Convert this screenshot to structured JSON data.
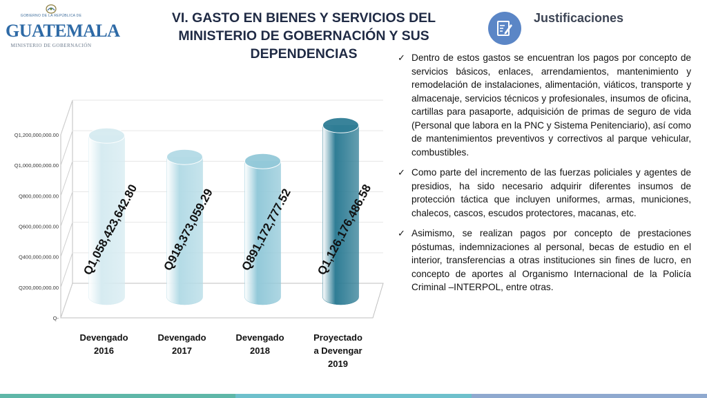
{
  "logo": {
    "top_line": "GOBIERNO DE LA REPÚBLICA DE",
    "name": "GUATEMALA",
    "ministry": "MINISTERIO DE GOBERNACIÓN"
  },
  "title": {
    "line1": "VI. GASTO EN BIENES Y SERVICIOS DEL",
    "line2": "MINISTERIO DE GOBERNACIÓN Y SUS",
    "line3": "DEPENDENCIAS"
  },
  "justifications": {
    "heading": "Justificaciones",
    "icon": "edit-note-icon",
    "bullets": [
      "Dentro de estos gastos se encuentran los pagos por concepto de servicios básicos, enlaces, arrendamientos, mantenimiento y remodelación de instalaciones, alimentación, viáticos, transporte y almacenaje, servicios técnicos y profesionales, insumos de oficina,  cartillas para pasaporte, adquisición de primas de seguro de vida (Personal que labora en la PNC y Sistema Penitenciario), así como de mantenimientos preventivos y correctivos al parque vehicular, combustibles.",
      "Como parte del incremento de las fuerzas policiales y agentes de presidios, ha sido necesario adquirir diferentes insumos de protección táctica que incluyen uniformes, armas, municiones, chalecos, cascos, escudos protectores, macanas, etc.",
      "Asimismo, se realizan pagos por concepto de prestaciones póstumas, indemnizaciones al personal, becas de estudio en el interior, transferencias a otras instituciones sin fines de lucro, en concepto de aportes al Organismo Internacional de la Policía Criminal –INTERPOL, entre otras."
    ]
  },
  "chart_data": {
    "type": "bar",
    "categories": [
      [
        "Devengado",
        "2016"
      ],
      [
        "Devengado",
        "2017"
      ],
      [
        "Devengado",
        "2018"
      ],
      [
        "Proyectado",
        "a Devengar",
        "2019"
      ]
    ],
    "values": [
      1058423642.8,
      918373059.29,
      891172777.52,
      1126176486.58
    ],
    "data_labels": [
      "Q1,058,423,642.80",
      "Q918,373,059.29",
      "Q891,172,777.52",
      "Q1,126,176,486.58"
    ],
    "y_ticks": [
      "Q-",
      "Q200,000,000.00",
      "Q400,000,000.00",
      "Q600,000,000.00",
      "Q800,000,000.00",
      "Q1,000,000,000.00",
      "Q1,200,000,000.00"
    ],
    "y_tick_values": [
      0,
      200000000,
      400000000,
      600000000,
      800000000,
      1000000000,
      1200000000
    ],
    "ylim": [
      0,
      1200000000
    ],
    "grid": true,
    "bar_colors": [
      "#d6ebf1",
      "#b4dbe6",
      "#93c9d9",
      "#2f7d95"
    ]
  },
  "footer_colors": [
    "#5fb7a8",
    "#6ec0cc",
    "#8fa9cf"
  ]
}
